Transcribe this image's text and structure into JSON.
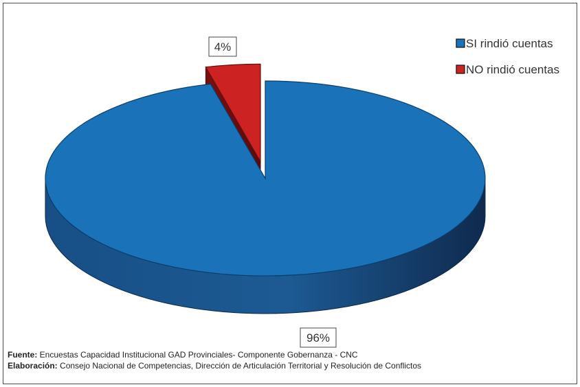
{
  "chart_data": {
    "type": "pie",
    "slices": [
      {
        "name": "SI rindió cuentas",
        "value": 96,
        "label": "96%",
        "color": "#1a73b8"
      },
      {
        "name": "NO rindió cuentas",
        "value": 4,
        "label": "4%",
        "color": "#cc2222"
      }
    ],
    "legend_position": "top-right",
    "style": "3d-exploded"
  },
  "footer": {
    "source_label": "Fuente:",
    "source_text": " Encuestas Capacidad Institucional GAD Provinciales- Componente Gobernanza - CNC",
    "credit_label": "Elaboración:",
    "credit_text": " Consejo Nacional de Competencias, Dirección de Articulación Territorial y Resolución de Conflictos"
  }
}
